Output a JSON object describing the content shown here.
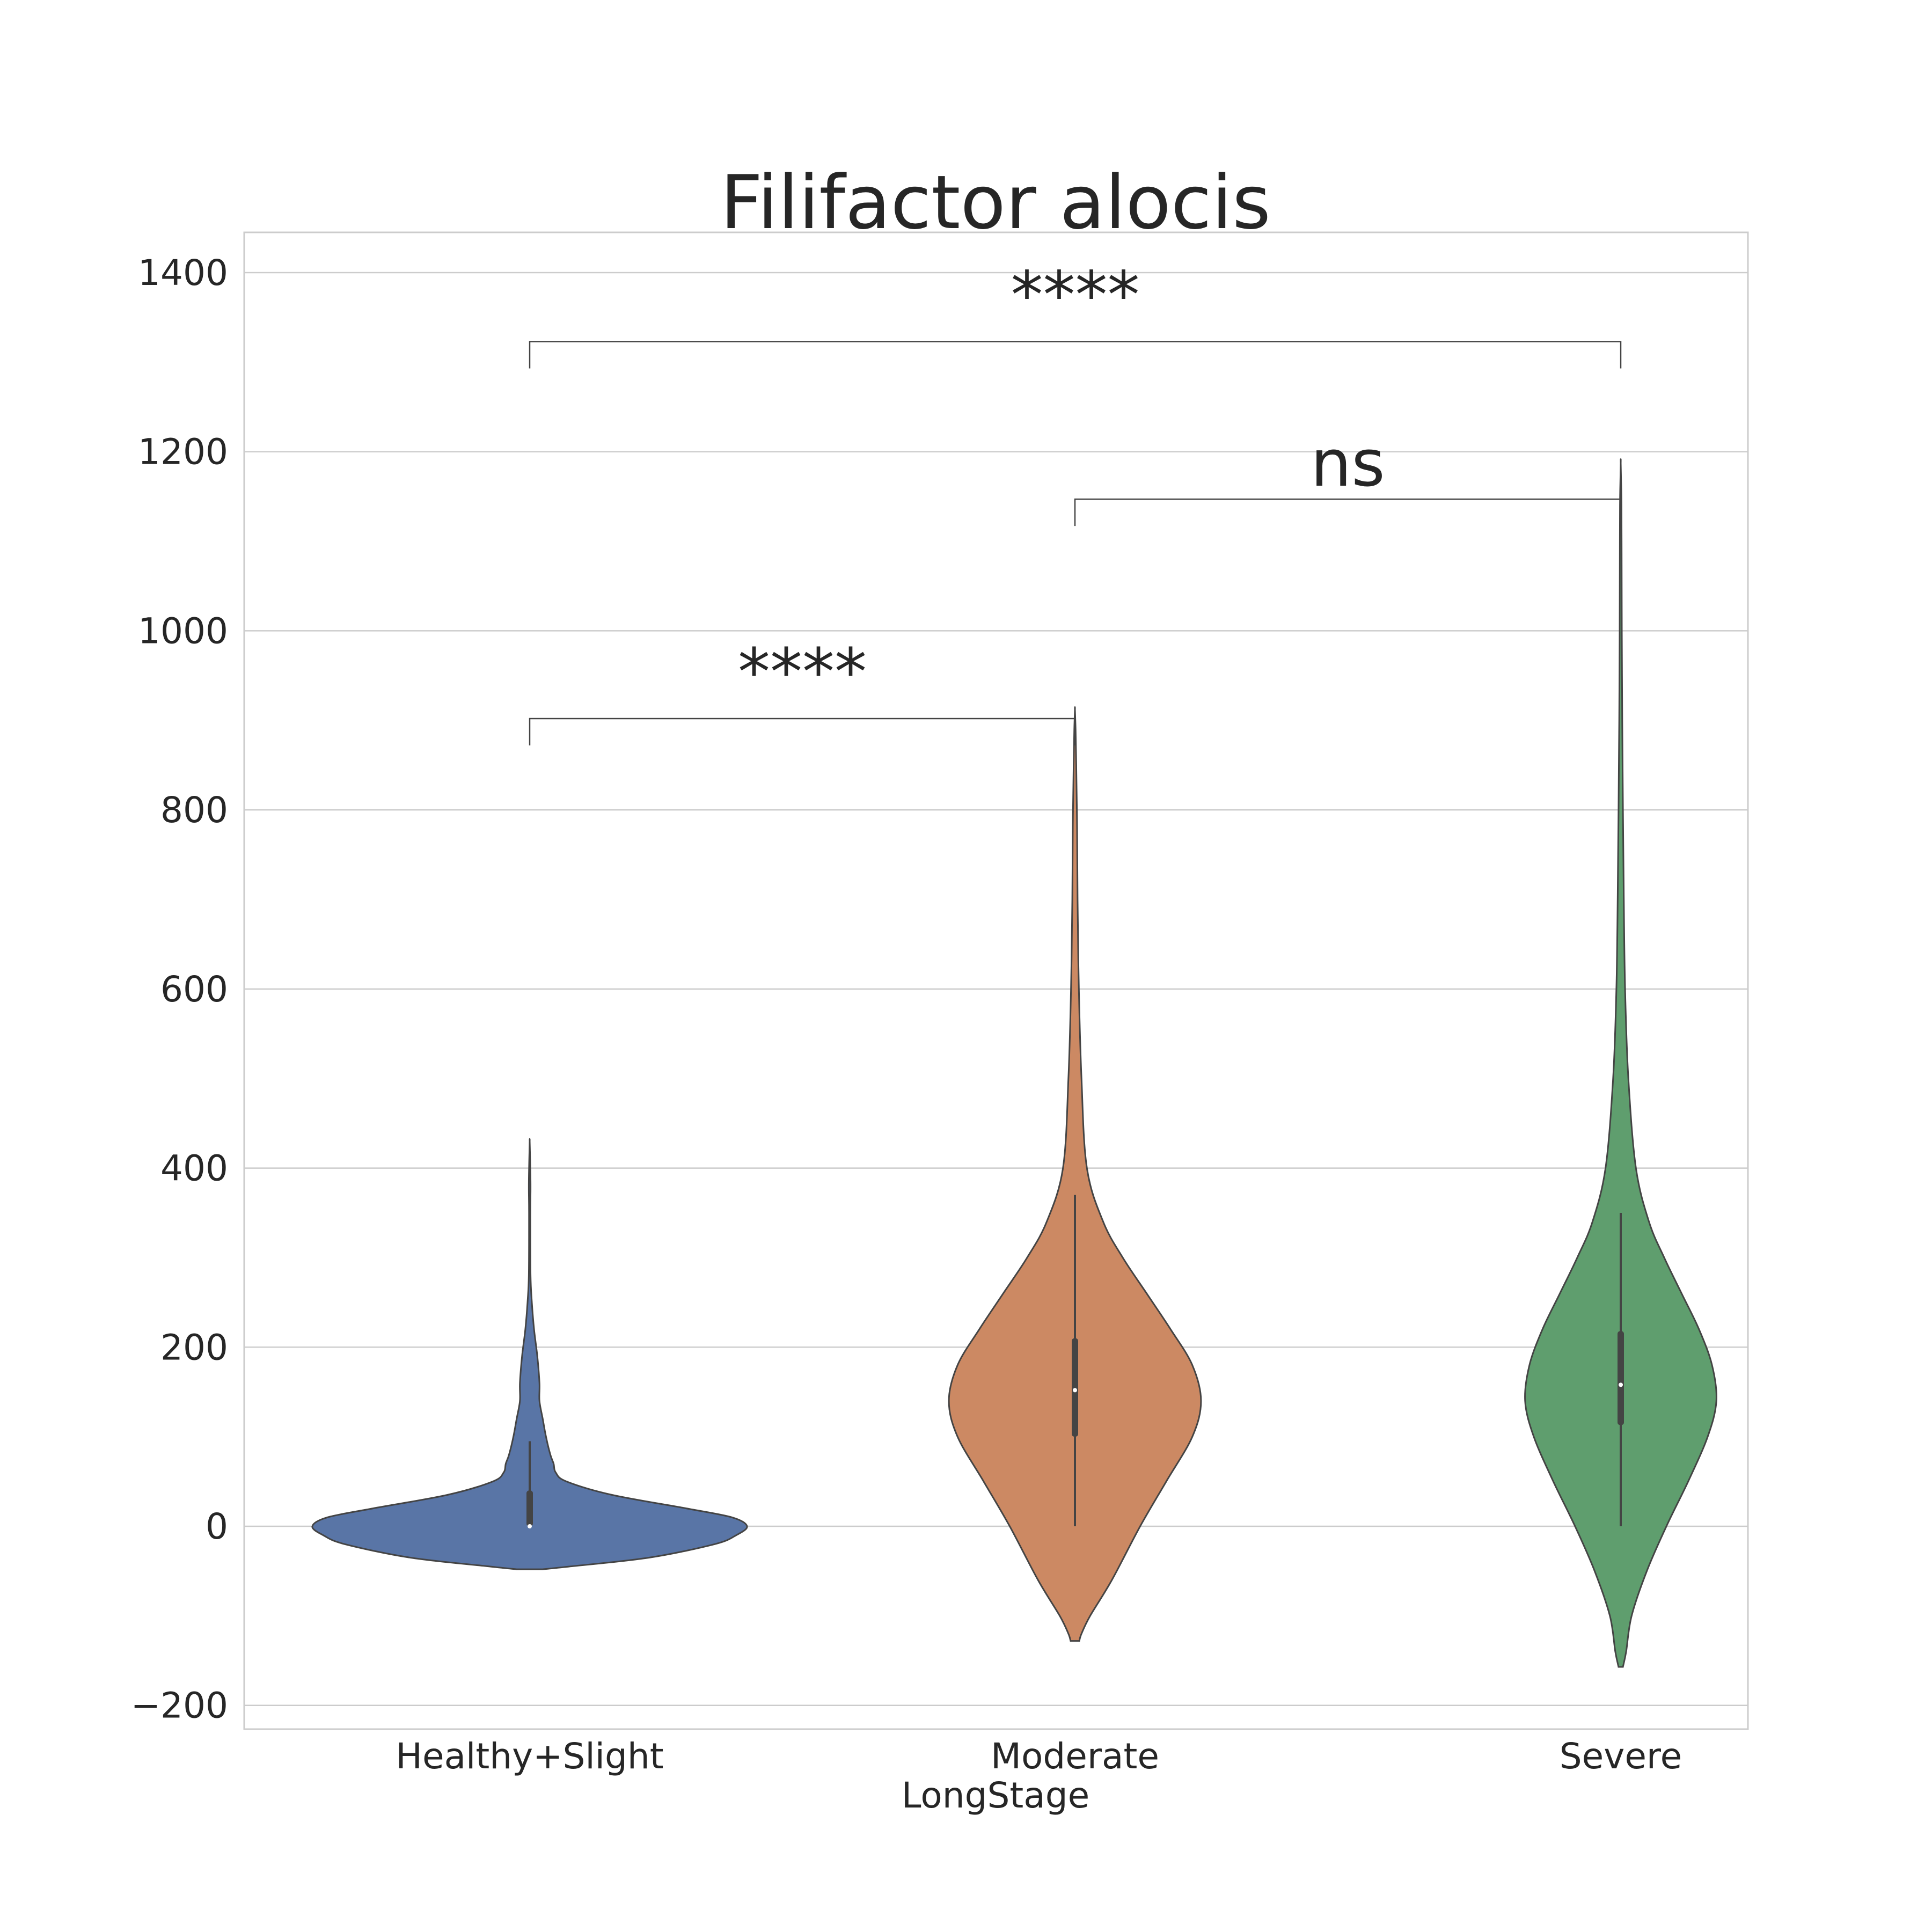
{
  "chart_data": {
    "type": "violin",
    "title": "Filifactor alocis",
    "xlabel": "LongStage",
    "ylabel": "",
    "ylim": [
      -225,
      1445
    ],
    "yticks": [
      -200,
      0,
      200,
      400,
      600,
      800,
      1000,
      1200,
      1400
    ],
    "ytick_labels": [
      "−200",
      "0",
      "200",
      "400",
      "600",
      "800",
      "1000",
      "1200",
      "1400"
    ],
    "grid": true,
    "categories": [
      "Healthy+Slight",
      "Moderate",
      "Severe"
    ],
    "series": [
      {
        "category": "Healthy+Slight",
        "color": "#5975a6",
        "whisker": [
          0,
          95
        ],
        "box": [
          0,
          40
        ],
        "median": 0,
        "profile": [
          [
            -48,
            0.06
          ],
          [
            -45,
            0.18
          ],
          [
            -35,
            0.55
          ],
          [
            -20,
            0.85
          ],
          [
            -10,
            0.95
          ],
          [
            0,
            1.0
          ],
          [
            10,
            0.93
          ],
          [
            20,
            0.72
          ],
          [
            35,
            0.38
          ],
          [
            50,
            0.17
          ],
          [
            60,
            0.12
          ],
          [
            70,
            0.11
          ],
          [
            80,
            0.095
          ],
          [
            100,
            0.075
          ],
          [
            120,
            0.06
          ],
          [
            140,
            0.045
          ],
          [
            160,
            0.045
          ],
          [
            190,
            0.035
          ],
          [
            220,
            0.02
          ],
          [
            250,
            0.01
          ],
          [
            280,
            0.004
          ],
          [
            350,
            0.003
          ],
          [
            380,
            0.004
          ],
          [
            410,
            0.002
          ],
          [
            430,
            0
          ]
        ]
      },
      {
        "category": "Moderate",
        "color": "#cc8963",
        "whisker": [
          0,
          370
        ],
        "box": [
          100,
          210
        ],
        "median": 152,
        "profile": [
          [
            -128,
            0.02
          ],
          [
            -120,
            0.03
          ],
          [
            -100,
            0.07
          ],
          [
            -60,
            0.17
          ],
          [
            0,
            0.3
          ],
          [
            50,
            0.42
          ],
          [
            100,
            0.54
          ],
          [
            140,
            0.58
          ],
          [
            180,
            0.54
          ],
          [
            220,
            0.44
          ],
          [
            260,
            0.33
          ],
          [
            300,
            0.22
          ],
          [
            340,
            0.13
          ],
          [
            400,
            0.055
          ],
          [
            500,
            0.03
          ],
          [
            600,
            0.018
          ],
          [
            700,
            0.012
          ],
          [
            780,
            0.01
          ],
          [
            850,
            0.006
          ],
          [
            890,
            0.003
          ],
          [
            912,
            0
          ]
        ]
      },
      {
        "category": "Severe",
        "color": "#5f9e6e",
        "whisker": [
          0,
          350
        ],
        "box": [
          113,
          218
        ],
        "median": 158,
        "profile": [
          [
            -157,
            0.01
          ],
          [
            -140,
            0.025
          ],
          [
            -100,
            0.05
          ],
          [
            -50,
            0.12
          ],
          [
            0,
            0.21
          ],
          [
            50,
            0.31
          ],
          [
            100,
            0.4
          ],
          [
            140,
            0.44
          ],
          [
            180,
            0.42
          ],
          [
            220,
            0.36
          ],
          [
            260,
            0.28
          ],
          [
            300,
            0.2
          ],
          [
            340,
            0.13
          ],
          [
            400,
            0.07
          ],
          [
            500,
            0.035
          ],
          [
            600,
            0.02
          ],
          [
            700,
            0.014
          ],
          [
            800,
            0.01
          ],
          [
            900,
            0.007
          ],
          [
            1000,
            0.005
          ],
          [
            1100,
            0.004
          ],
          [
            1150,
            0.003
          ],
          [
            1187,
            0
          ]
        ]
      }
    ],
    "annotations": [
      {
        "from": "Healthy+Slight",
        "to": "Moderate",
        "label": "****",
        "y": 902
      },
      {
        "from": "Moderate",
        "to": "Severe",
        "label": "ns",
        "y": 1147
      },
      {
        "from": "Healthy+Slight",
        "to": "Severe",
        "label": "****",
        "y": 1323
      }
    ]
  }
}
